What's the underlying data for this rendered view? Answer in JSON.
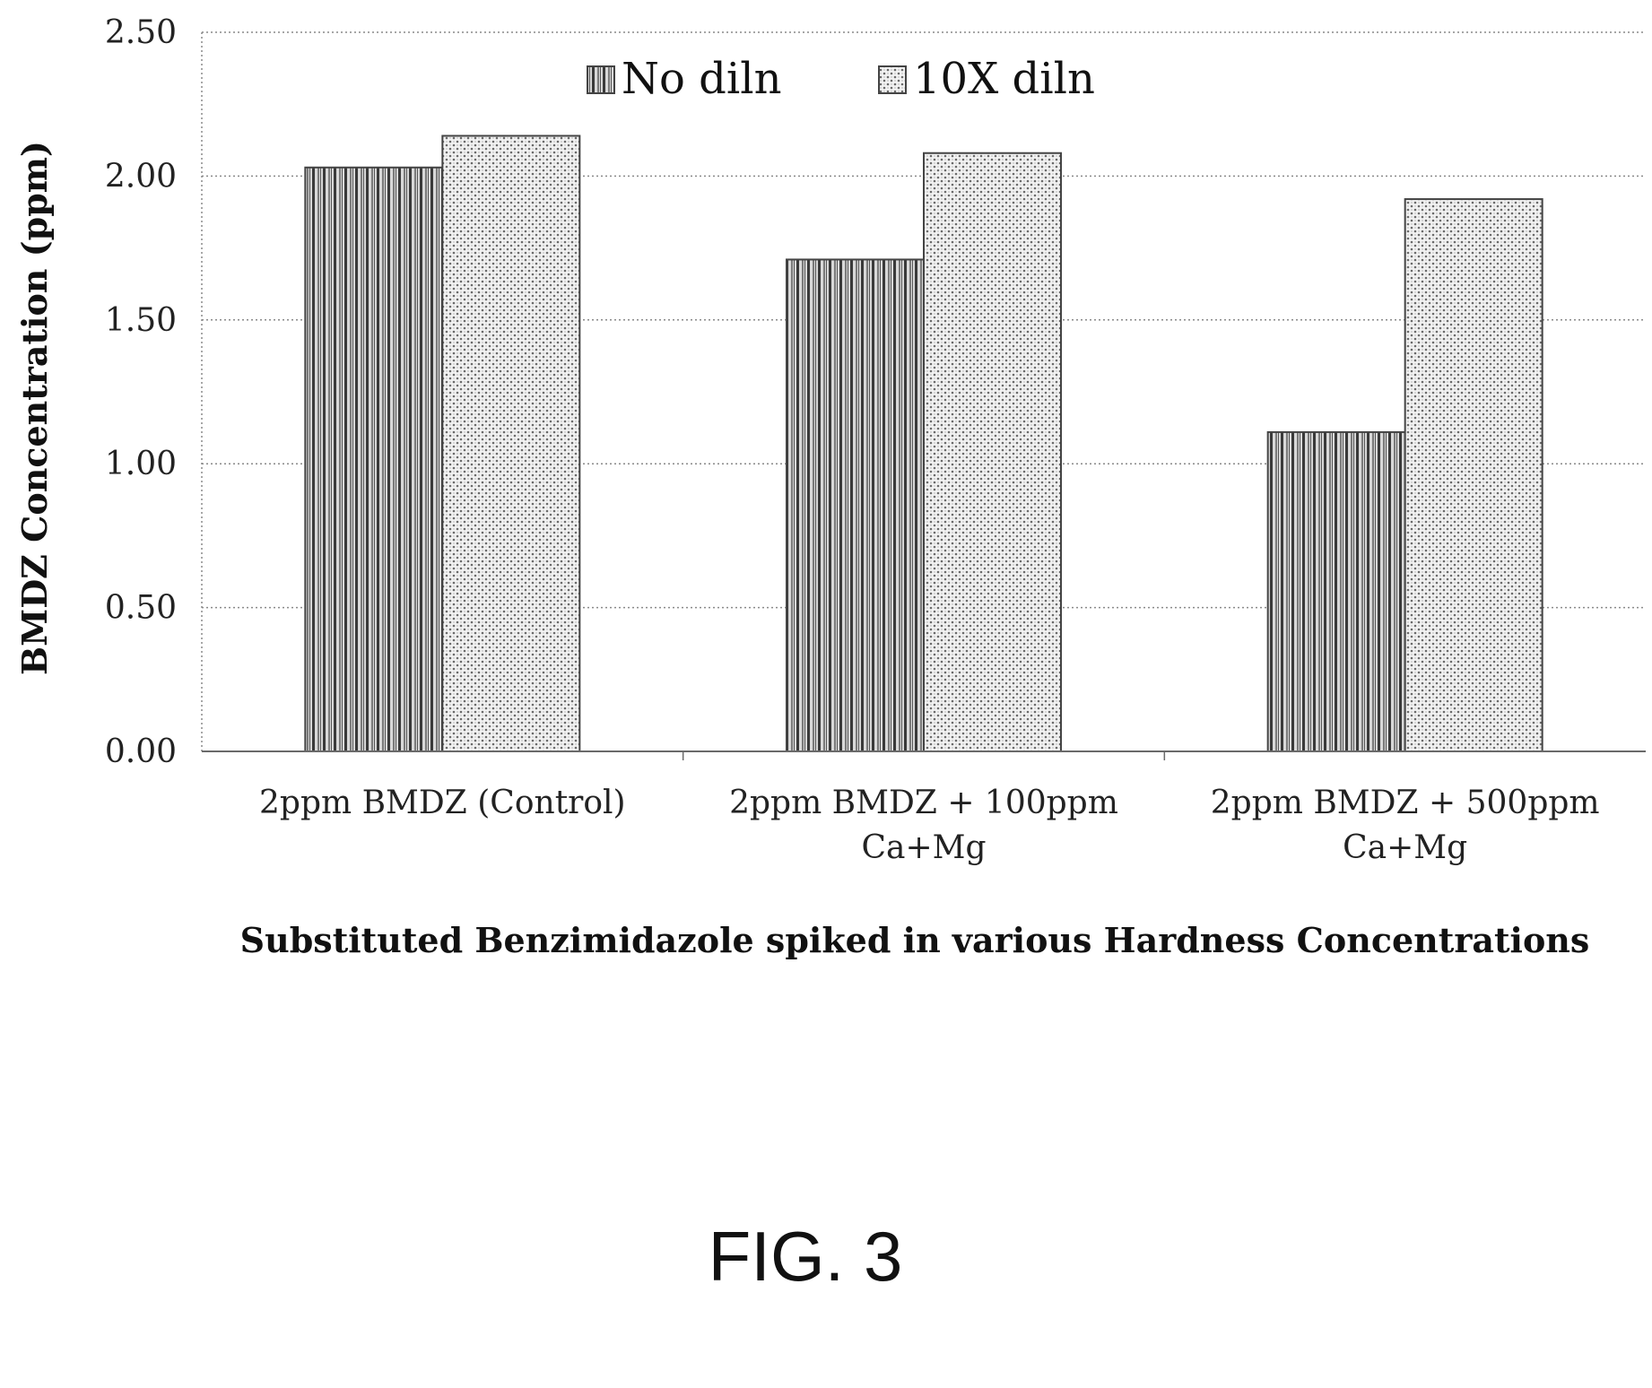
{
  "chart_data": {
    "type": "bar",
    "categories": [
      [
        "2ppm BMDZ (Control)"
      ],
      [
        "2ppm BMDZ + 100ppm",
        "Ca+Mg"
      ],
      [
        "2ppm BMDZ + 500ppm",
        "Ca+Mg"
      ]
    ],
    "series": [
      {
        "name": "No diln",
        "values": [
          2.03,
          1.71,
          1.11
        ]
      },
      {
        "name": "10X diln",
        "values": [
          2.14,
          2.08,
          1.92
        ]
      }
    ],
    "ylabel": "BMDZ Concentration (ppm)",
    "xlabel": "Substituted Benzimidazole spiked in various Hardness Concentrations",
    "ylim": [
      0,
      2.5
    ],
    "yticks": [
      "0.00",
      "0.50",
      "1.00",
      "1.50",
      "2.00",
      "2.50"
    ],
    "grid": true,
    "legend": "top"
  },
  "caption": "FIG. 3"
}
